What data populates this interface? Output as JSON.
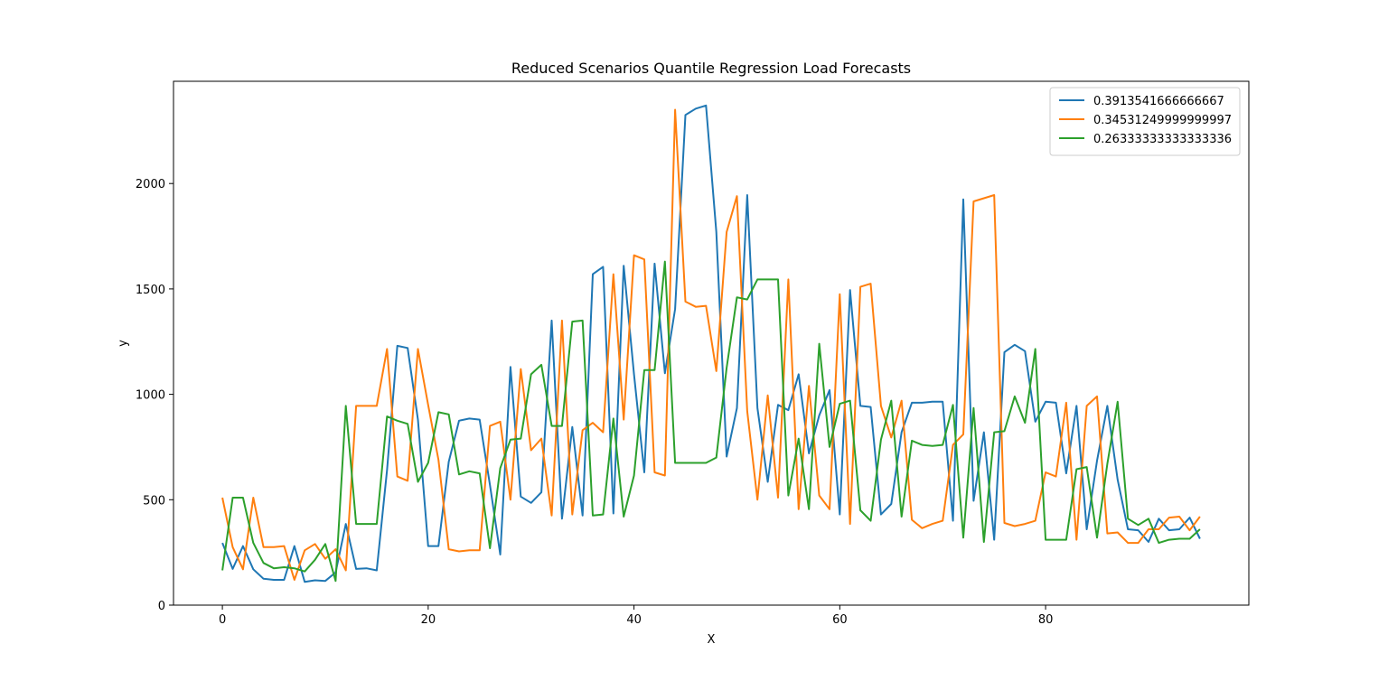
{
  "chart_data": {
    "type": "line",
    "title": "Reduced Scenarios Quantile Regression Load Forecasts",
    "xlabel": "X",
    "ylabel": "y",
    "xlim": [
      -4.75,
      99.75
    ],
    "ylim": [
      0,
      2485
    ],
    "xticks": [
      0,
      20,
      40,
      60,
      80
    ],
    "yticks": [
      0,
      500,
      1000,
      1500,
      2000
    ],
    "grid": false,
    "legend_position": "top-right",
    "x": [
      0,
      1,
      2,
      3,
      4,
      5,
      6,
      7,
      8,
      9,
      10,
      11,
      12,
      13,
      14,
      15,
      16,
      17,
      18,
      19,
      20,
      21,
      22,
      23,
      24,
      25,
      26,
      27,
      28,
      29,
      30,
      31,
      32,
      33,
      34,
      35,
      36,
      37,
      38,
      39,
      40,
      41,
      42,
      43,
      44,
      45,
      46,
      47,
      48,
      49,
      50,
      51,
      52,
      53,
      54,
      55,
      56,
      57,
      58,
      59,
      60,
      61,
      62,
      63,
      64,
      65,
      66,
      67,
      68,
      69,
      70,
      71,
      72,
      73,
      74,
      75,
      76,
      77,
      78,
      79,
      80,
      81,
      82,
      83,
      84,
      85,
      86,
      87,
      88,
      89,
      90,
      91,
      92,
      93,
      94,
      95
    ],
    "series": [
      {
        "name": "0.3913541666666667",
        "color": "#1f77b4",
        "values": [
          295,
          172,
          280,
          170,
          125,
          120,
          120,
          280,
          110,
          118,
          115,
          155,
          385,
          172,
          175,
          165,
          640,
          1230,
          1220,
          880,
          280,
          280,
          680,
          875,
          885,
          880,
          570,
          240,
          1130,
          515,
          485,
          535,
          1350,
          410,
          845,
          425,
          1570,
          1605,
          435,
          1610,
          1095,
          630,
          1620,
          1100,
          1405,
          2325,
          2355,
          2370,
          1770,
          705,
          935,
          1945,
          935,
          585,
          950,
          925,
          1095,
          720,
          900,
          1020,
          430,
          1495,
          945,
          940,
          430,
          480,
          820,
          960,
          960,
          965,
          965,
          400,
          1925,
          495,
          820,
          310,
          1200,
          1235,
          1205,
          870,
          965,
          960,
          625,
          945,
          360,
          685,
          945,
          595,
          360,
          355,
          300,
          410,
          355,
          360,
          415,
          315
        ]
      },
      {
        "name": "0.34531249999999997",
        "color": "#ff7f0e",
        "values": [
          510,
          275,
          170,
          510,
          275,
          275,
          280,
          120,
          260,
          290,
          220,
          265,
          165,
          945,
          945,
          945,
          1215,
          610,
          590,
          1215,
          950,
          690,
          265,
          255,
          260,
          260,
          850,
          870,
          500,
          1120,
          735,
          790,
          425,
          1350,
          430,
          830,
          865,
          820,
          1570,
          880,
          1660,
          1640,
          630,
          615,
          2350,
          1440,
          1415,
          1420,
          1110,
          1770,
          1940,
          920,
          500,
          995,
          510,
          1545,
          455,
          1040,
          520,
          455,
          1475,
          385,
          1510,
          1525,
          945,
          795,
          970,
          405,
          365,
          385,
          400,
          760,
          810,
          1915,
          1930,
          1945,
          390,
          375,
          385,
          400,
          630,
          610,
          960,
          310,
          945,
          990,
          340,
          345,
          295,
          295,
          360,
          360,
          415,
          420,
          355,
          420
        ]
      },
      {
        "name": "0.26333333333333336",
        "color": "#2ca02c",
        "values": [
          165,
          510,
          510,
          295,
          200,
          175,
          180,
          175,
          160,
          215,
          290,
          115,
          945,
          385,
          385,
          385,
          895,
          875,
          860,
          585,
          675,
          915,
          905,
          620,
          635,
          625,
          270,
          650,
          785,
          790,
          1095,
          1140,
          850,
          850,
          1345,
          1350,
          425,
          430,
          885,
          420,
          615,
          1115,
          1115,
          1630,
          675,
          675,
          675,
          675,
          700,
          1125,
          1460,
          1450,
          1545,
          1545,
          1545,
          520,
          790,
          455,
          1240,
          750,
          955,
          970,
          450,
          400,
          785,
          970,
          420,
          780,
          760,
          755,
          760,
          950,
          320,
          935,
          300,
          820,
          825,
          990,
          865,
          1215,
          310,
          310,
          310,
          645,
          655,
          320,
          670,
          965,
          410,
          380,
          410,
          295,
          310,
          315,
          315,
          360
        ]
      }
    ]
  }
}
